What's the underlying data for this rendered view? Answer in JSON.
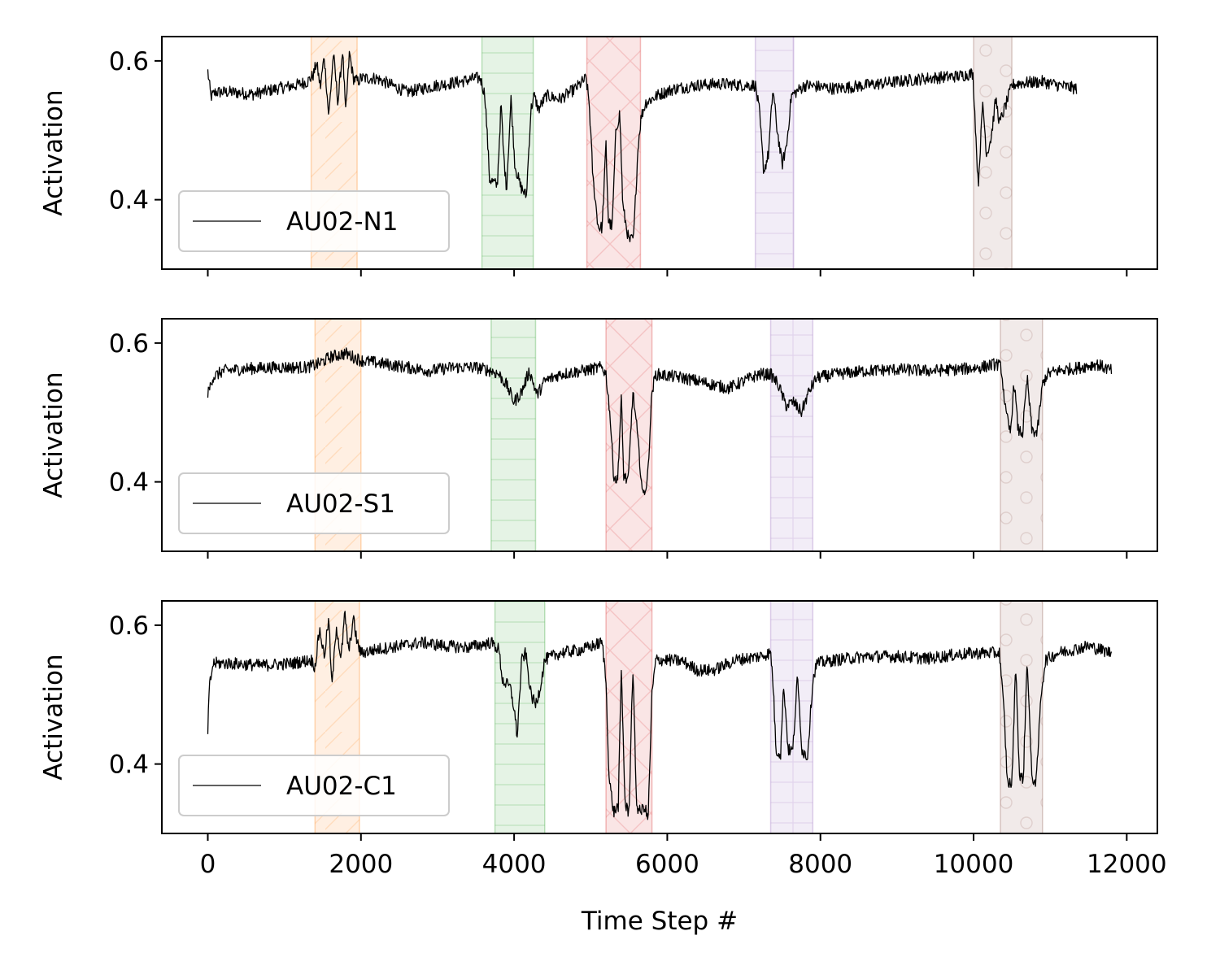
{
  "chart_data": {
    "type": "line",
    "xlabel": "Time Step #",
    "ylabel": "Activation",
    "xlim": [
      -600,
      12400
    ],
    "ylim": [
      0.3,
      0.635
    ],
    "x_ticks": [
      0,
      2000,
      4000,
      6000,
      8000,
      10000,
      12000
    ],
    "x_tick_labels": [
      "0",
      "2000",
      "4000",
      "6000",
      "8000",
      "10000",
      "12000"
    ],
    "y_ticks": [
      0.4,
      0.6
    ],
    "y_tick_labels": [
      "0.4",
      "0.6"
    ],
    "legend_position": "lower-left",
    "line_color": "#000000",
    "band_colors": [
      "#ff7f0e",
      "#2ca02c",
      "#d62728",
      "#9467bd",
      "#8c564b"
    ],
    "band_hatches": [
      "diagonal",
      "horizontal",
      "cross",
      "grid",
      "circles"
    ],
    "subplots": [
      {
        "name": "AU02-N1",
        "x_end": 11350,
        "baseline": 0.56,
        "bands": [
          [
            1350,
            1950
          ],
          [
            3580,
            4250
          ],
          [
            4950,
            5650
          ],
          [
            7150,
            7650
          ],
          [
            10000,
            10500
          ]
        ],
        "profile": [
          [
            0,
            0.585
          ],
          [
            40,
            0.548
          ],
          [
            100,
            0.555
          ],
          [
            300,
            0.555
          ],
          [
            600,
            0.552
          ],
          [
            900,
            0.56
          ],
          [
            1150,
            0.565
          ],
          [
            1300,
            0.57
          ],
          [
            1380,
            0.58
          ],
          [
            1420,
            0.598
          ],
          [
            1470,
            0.562
          ],
          [
            1520,
            0.607
          ],
          [
            1580,
            0.52
          ],
          [
            1640,
            0.61
          ],
          [
            1700,
            0.54
          ],
          [
            1760,
            0.615
          ],
          [
            1800,
            0.525
          ],
          [
            1850,
            0.612
          ],
          [
            1900,
            0.575
          ],
          [
            1960,
            0.57
          ],
          [
            2000,
            0.575
          ],
          [
            2200,
            0.575
          ],
          [
            2400,
            0.565
          ],
          [
            2600,
            0.555
          ],
          [
            2800,
            0.56
          ],
          [
            3000,
            0.565
          ],
          [
            3300,
            0.57
          ],
          [
            3500,
            0.575
          ],
          [
            3560,
            0.575
          ],
          [
            3620,
            0.55
          ],
          [
            3680,
            0.43
          ],
          [
            3780,
            0.42
          ],
          [
            3830,
            0.54
          ],
          [
            3860,
            0.47
          ],
          [
            3900,
            0.415
          ],
          [
            3960,
            0.545
          ],
          [
            4010,
            0.45
          ],
          [
            4080,
            0.42
          ],
          [
            4160,
            0.405
          ],
          [
            4220,
            0.53
          ],
          [
            4260,
            0.55
          ],
          [
            4320,
            0.53
          ],
          [
            4420,
            0.55
          ],
          [
            4600,
            0.545
          ],
          [
            4800,
            0.56
          ],
          [
            4940,
            0.575
          ],
          [
            4980,
            0.54
          ],
          [
            5030,
            0.43
          ],
          [
            5100,
            0.36
          ],
          [
            5150,
            0.36
          ],
          [
            5200,
            0.48
          ],
          [
            5230,
            0.37
          ],
          [
            5280,
            0.36
          ],
          [
            5330,
            0.5
          ],
          [
            5380,
            0.525
          ],
          [
            5420,
            0.39
          ],
          [
            5500,
            0.34
          ],
          [
            5560,
            0.345
          ],
          [
            5620,
            0.48
          ],
          [
            5660,
            0.52
          ],
          [
            5720,
            0.54
          ],
          [
            5900,
            0.552
          ],
          [
            6100,
            0.56
          ],
          [
            6400,
            0.565
          ],
          [
            6700,
            0.567
          ],
          [
            7000,
            0.565
          ],
          [
            7150,
            0.565
          ],
          [
            7200,
            0.53
          ],
          [
            7260,
            0.44
          ],
          [
            7320,
            0.465
          ],
          [
            7380,
            0.56
          ],
          [
            7430,
            0.505
          ],
          [
            7500,
            0.45
          ],
          [
            7560,
            0.48
          ],
          [
            7620,
            0.55
          ],
          [
            7680,
            0.555
          ],
          [
            7800,
            0.565
          ],
          [
            8200,
            0.56
          ],
          [
            8600,
            0.565
          ],
          [
            9000,
            0.57
          ],
          [
            9400,
            0.575
          ],
          [
            9800,
            0.578
          ],
          [
            9990,
            0.582
          ],
          [
            10010,
            0.54
          ],
          [
            10060,
            0.42
          ],
          [
            10120,
            0.54
          ],
          [
            10170,
            0.465
          ],
          [
            10230,
            0.49
          ],
          [
            10290,
            0.545
          ],
          [
            10340,
            0.51
          ],
          [
            10400,
            0.53
          ],
          [
            10460,
            0.55
          ],
          [
            10500,
            0.565
          ],
          [
            10600,
            0.568
          ],
          [
            10900,
            0.57
          ],
          [
            11100,
            0.565
          ],
          [
            11350,
            0.56
          ]
        ]
      },
      {
        "name": "AU02-S1",
        "x_end": 11800,
        "baseline": 0.563,
        "bands": [
          [
            1400,
            2000
          ],
          [
            3700,
            4280
          ],
          [
            5200,
            5800
          ],
          [
            7350,
            7900
          ],
          [
            10350,
            10900
          ]
        ],
        "profile": [
          [
            0,
            0.525
          ],
          [
            60,
            0.55
          ],
          [
            200,
            0.56
          ],
          [
            500,
            0.563
          ],
          [
            900,
            0.565
          ],
          [
            1300,
            0.565
          ],
          [
            1450,
            0.57
          ],
          [
            1600,
            0.58
          ],
          [
            1800,
            0.585
          ],
          [
            2000,
            0.575
          ],
          [
            2300,
            0.57
          ],
          [
            2600,
            0.565
          ],
          [
            2900,
            0.56
          ],
          [
            3200,
            0.565
          ],
          [
            3500,
            0.565
          ],
          [
            3700,
            0.56
          ],
          [
            3800,
            0.555
          ],
          [
            3900,
            0.54
          ],
          [
            4000,
            0.515
          ],
          [
            4100,
            0.53
          ],
          [
            4200,
            0.56
          ],
          [
            4300,
            0.525
          ],
          [
            4400,
            0.545
          ],
          [
            4600,
            0.555
          ],
          [
            4900,
            0.56
          ],
          [
            5150,
            0.565
          ],
          [
            5200,
            0.555
          ],
          [
            5250,
            0.5
          ],
          [
            5300,
            0.41
          ],
          [
            5350,
            0.4
          ],
          [
            5400,
            0.52
          ],
          [
            5430,
            0.41
          ],
          [
            5490,
            0.4
          ],
          [
            5550,
            0.53
          ],
          [
            5600,
            0.48
          ],
          [
            5680,
            0.38
          ],
          [
            5740,
            0.4
          ],
          [
            5800,
            0.53
          ],
          [
            5850,
            0.555
          ],
          [
            6000,
            0.553
          ],
          [
            6200,
            0.55
          ],
          [
            6400,
            0.545
          ],
          [
            6600,
            0.54
          ],
          [
            6800,
            0.535
          ],
          [
            7000,
            0.545
          ],
          [
            7200,
            0.555
          ],
          [
            7350,
            0.555
          ],
          [
            7450,
            0.54
          ],
          [
            7550,
            0.51
          ],
          [
            7650,
            0.515
          ],
          [
            7750,
            0.5
          ],
          [
            7850,
            0.53
          ],
          [
            7950,
            0.55
          ],
          [
            8200,
            0.555
          ],
          [
            8600,
            0.56
          ],
          [
            9000,
            0.562
          ],
          [
            9400,
            0.56
          ],
          [
            9800,
            0.562
          ],
          [
            10100,
            0.565
          ],
          [
            10300,
            0.57
          ],
          [
            10360,
            0.565
          ],
          [
            10420,
            0.5
          ],
          [
            10480,
            0.47
          ],
          [
            10530,
            0.545
          ],
          [
            10580,
            0.475
          ],
          [
            10640,
            0.47
          ],
          [
            10700,
            0.55
          ],
          [
            10760,
            0.475
          ],
          [
            10830,
            0.47
          ],
          [
            10900,
            0.54
          ],
          [
            10960,
            0.555
          ],
          [
            11100,
            0.56
          ],
          [
            11400,
            0.565
          ],
          [
            11600,
            0.57
          ],
          [
            11800,
            0.56
          ]
        ]
      },
      {
        "name": "AU02-C1",
        "x_end": 11800,
        "baseline": 0.55,
        "bands": [
          [
            1400,
            1980
          ],
          [
            3750,
            4400
          ],
          [
            5200,
            5800
          ],
          [
            7350,
            7900
          ],
          [
            10350,
            10900
          ]
        ],
        "profile": [
          [
            0,
            0.445
          ],
          [
            20,
            0.51
          ],
          [
            70,
            0.545
          ],
          [
            300,
            0.545
          ],
          [
            700,
            0.542
          ],
          [
            1100,
            0.545
          ],
          [
            1350,
            0.55
          ],
          [
            1400,
            0.54
          ],
          [
            1460,
            0.595
          ],
          [
            1520,
            0.555
          ],
          [
            1580,
            0.61
          ],
          [
            1620,
            0.51
          ],
          [
            1680,
            0.6
          ],
          [
            1740,
            0.55
          ],
          [
            1790,
            0.618
          ],
          [
            1840,
            0.56
          ],
          [
            1900,
            0.61
          ],
          [
            1950,
            0.575
          ],
          [
            2000,
            0.56
          ],
          [
            2200,
            0.565
          ],
          [
            2500,
            0.57
          ],
          [
            2800,
            0.575
          ],
          [
            3100,
            0.57
          ],
          [
            3400,
            0.568
          ],
          [
            3700,
            0.575
          ],
          [
            3800,
            0.565
          ],
          [
            3850,
            0.52
          ],
          [
            3950,
            0.51
          ],
          [
            4000,
            0.48
          ],
          [
            4040,
            0.44
          ],
          [
            4100,
            0.55
          ],
          [
            4150,
            0.56
          ],
          [
            4220,
            0.5
          ],
          [
            4280,
            0.485
          ],
          [
            4340,
            0.51
          ],
          [
            4400,
            0.55
          ],
          [
            4600,
            0.56
          ],
          [
            4900,
            0.565
          ],
          [
            5150,
            0.575
          ],
          [
            5200,
            0.52
          ],
          [
            5240,
            0.38
          ],
          [
            5300,
            0.33
          ],
          [
            5360,
            0.34
          ],
          [
            5400,
            0.535
          ],
          [
            5450,
            0.34
          ],
          [
            5500,
            0.33
          ],
          [
            5550,
            0.54
          ],
          [
            5600,
            0.34
          ],
          [
            5650,
            0.33
          ],
          [
            5700,
            0.34
          ],
          [
            5750,
            0.32
          ],
          [
            5800,
            0.5
          ],
          [
            5850,
            0.55
          ],
          [
            6000,
            0.55
          ],
          [
            6200,
            0.548
          ],
          [
            6400,
            0.535
          ],
          [
            6600,
            0.535
          ],
          [
            6900,
            0.55
          ],
          [
            7200,
            0.555
          ],
          [
            7350,
            0.56
          ],
          [
            7380,
            0.52
          ],
          [
            7420,
            0.42
          ],
          [
            7480,
            0.415
          ],
          [
            7520,
            0.515
          ],
          [
            7580,
            0.42
          ],
          [
            7640,
            0.42
          ],
          [
            7700,
            0.525
          ],
          [
            7760,
            0.42
          ],
          [
            7830,
            0.41
          ],
          [
            7900,
            0.52
          ],
          [
            7950,
            0.545
          ],
          [
            8200,
            0.55
          ],
          [
            8600,
            0.555
          ],
          [
            9000,
            0.555
          ],
          [
            9400,
            0.552
          ],
          [
            9800,
            0.558
          ],
          [
            10100,
            0.56
          ],
          [
            10340,
            0.56
          ],
          [
            10400,
            0.47
          ],
          [
            10440,
            0.375
          ],
          [
            10500,
            0.37
          ],
          [
            10550,
            0.545
          ],
          [
            10600,
            0.38
          ],
          [
            10650,
            0.38
          ],
          [
            10700,
            0.555
          ],
          [
            10760,
            0.38
          ],
          [
            10820,
            0.375
          ],
          [
            10880,
            0.5
          ],
          [
            10940,
            0.55
          ],
          [
            11100,
            0.56
          ],
          [
            11300,
            0.565
          ],
          [
            11500,
            0.57
          ],
          [
            11800,
            0.56
          ]
        ]
      }
    ]
  }
}
